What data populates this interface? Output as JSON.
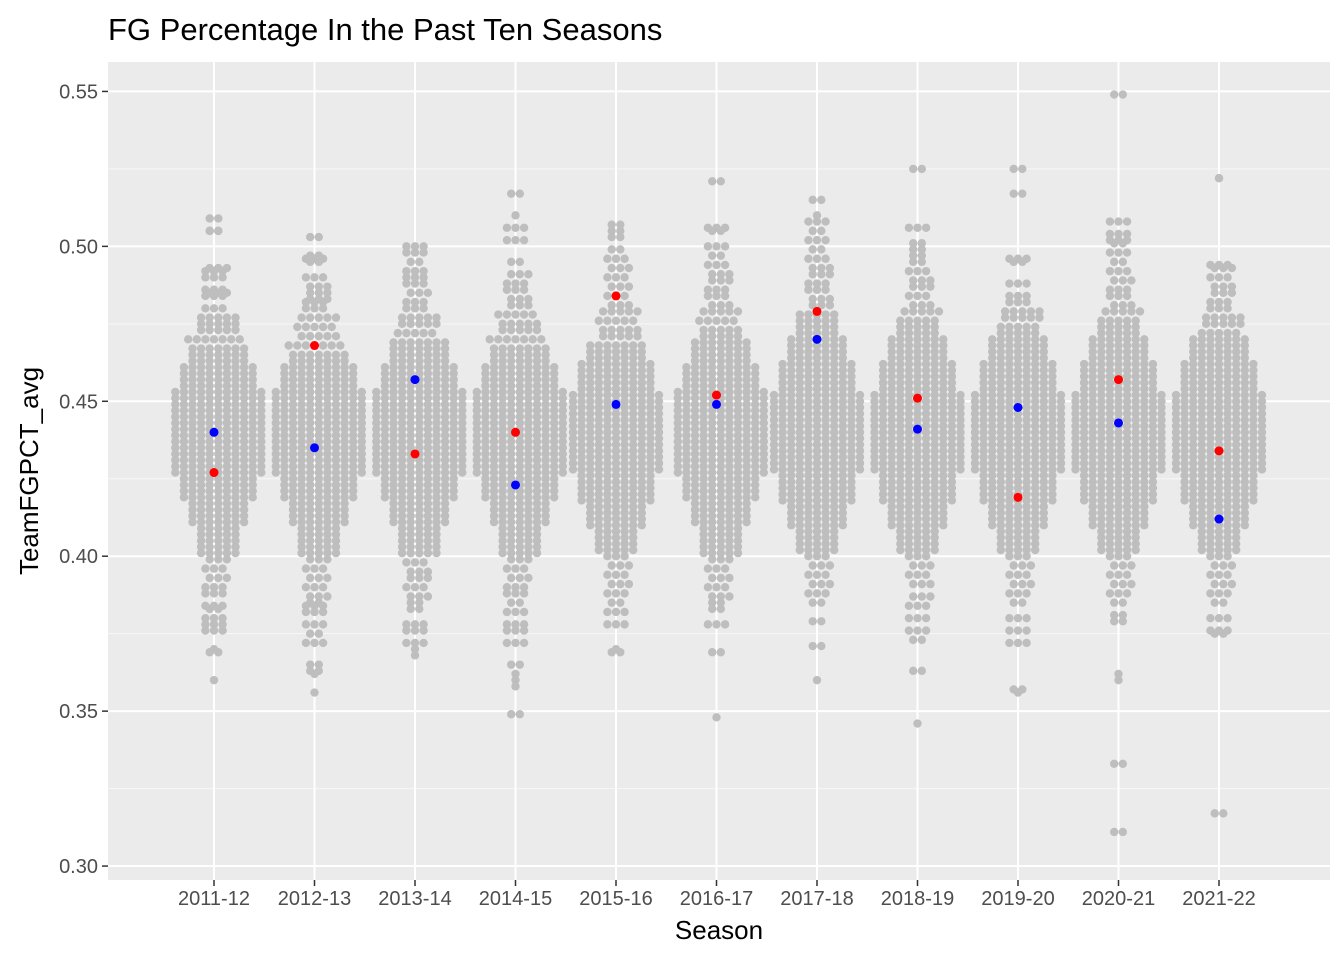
{
  "chart_data": {
    "type": "scatter",
    "title": "FG Percentage In the Past Ten Seasons",
    "xlabel": "Season",
    "ylabel": "TeamFGPCT_avg",
    "categories": [
      "2011-12",
      "2012-13",
      "2013-14",
      "2014-15",
      "2015-16",
      "2016-17",
      "2017-18",
      "2018-19",
      "2019-20",
      "2020-21",
      "2021-22"
    ],
    "ylim": [
      0.2955,
      0.5595
    ],
    "yticks": [
      "0.30",
      "0.35",
      "0.40",
      "0.45",
      "0.50",
      "0.55"
    ],
    "grid": true,
    "legend": "none",
    "background_color": "#ebebeb",
    "distribution_color": "#bebebe",
    "series": [
      {
        "color": "#ff0000",
        "points": [
          {
            "x": "2011-12",
            "y": 0.427
          },
          {
            "x": "2012-13",
            "y": 0.468
          },
          {
            "x": "2013-14",
            "y": 0.433
          },
          {
            "x": "2014-15",
            "y": 0.44
          },
          {
            "x": "2015-16",
            "y": 0.484
          },
          {
            "x": "2016-17",
            "y": 0.452
          },
          {
            "x": "2017-18",
            "y": 0.479
          },
          {
            "x": "2018-19",
            "y": 0.451
          },
          {
            "x": "2019-20",
            "y": 0.419
          },
          {
            "x": "2020-21",
            "y": 0.457
          },
          {
            "x": "2021-22",
            "y": 0.434
          }
        ]
      },
      {
        "color": "#0000ff",
        "points": [
          {
            "x": "2011-12",
            "y": 0.44
          },
          {
            "x": "2012-13",
            "y": 0.435
          },
          {
            "x": "2013-14",
            "y": 0.457
          },
          {
            "x": "2014-15",
            "y": 0.423
          },
          {
            "x": "2015-16",
            "y": 0.449
          },
          {
            "x": "2016-17",
            "y": 0.449
          },
          {
            "x": "2017-18",
            "y": 0.47
          },
          {
            "x": "2018-19",
            "y": 0.441
          },
          {
            "x": "2019-20",
            "y": 0.448
          },
          {
            "x": "2020-21",
            "y": 0.443
          },
          {
            "x": "2021-22",
            "y": 0.412
          }
        ]
      }
    ],
    "distribution": [
      {
        "x": "2011-12",
        "values": [
          0.509,
          0.505,
          0.505,
          0.493,
          0.492,
          0.49,
          0.486,
          0.485,
          0.484,
          0.48,
          0.477,
          0.475,
          0.473,
          0.47,
          0.467,
          0.465,
          0.463,
          0.461,
          0.459,
          0.457,
          0.455,
          0.453,
          0.451,
          0.449,
          0.447,
          0.445,
          0.443,
          0.441,
          0.439,
          0.437,
          0.435,
          0.433,
          0.431,
          0.429,
          0.427,
          0.425,
          0.423,
          0.421,
          0.419,
          0.417,
          0.415,
          0.413,
          0.411,
          0.409,
          0.407,
          0.405,
          0.403,
          0.401,
          0.399,
          0.396,
          0.393,
          0.39,
          0.388,
          0.384,
          0.383,
          0.38,
          0.378,
          0.376,
          0.37,
          0.369,
          0.36
        ]
      },
      {
        "x": "2012-13",
        "values": [
          0.503,
          0.497,
          0.496,
          0.495,
          0.49,
          0.487,
          0.485,
          0.483,
          0.482,
          0.48,
          0.477,
          0.474,
          0.471,
          0.468,
          0.465,
          0.463,
          0.461,
          0.459,
          0.457,
          0.455,
          0.453,
          0.451,
          0.449,
          0.447,
          0.445,
          0.443,
          0.441,
          0.439,
          0.437,
          0.435,
          0.433,
          0.431,
          0.429,
          0.427,
          0.425,
          0.423,
          0.421,
          0.419,
          0.417,
          0.415,
          0.413,
          0.411,
          0.409,
          0.407,
          0.405,
          0.403,
          0.401,
          0.399,
          0.396,
          0.393,
          0.39,
          0.387,
          0.385,
          0.384,
          0.382,
          0.378,
          0.375,
          0.372,
          0.365,
          0.363,
          0.362,
          0.356
        ]
      },
      {
        "x": "2013-14",
        "values": [
          0.5,
          0.498,
          0.495,
          0.492,
          0.49,
          0.488,
          0.485,
          0.482,
          0.48,
          0.477,
          0.475,
          0.472,
          0.469,
          0.467,
          0.465,
          0.463,
          0.461,
          0.459,
          0.457,
          0.455,
          0.453,
          0.451,
          0.449,
          0.447,
          0.445,
          0.443,
          0.441,
          0.439,
          0.437,
          0.435,
          0.433,
          0.431,
          0.429,
          0.427,
          0.425,
          0.423,
          0.421,
          0.419,
          0.417,
          0.415,
          0.413,
          0.411,
          0.409,
          0.407,
          0.405,
          0.403,
          0.401,
          0.398,
          0.395,
          0.393,
          0.39,
          0.387,
          0.385,
          0.383,
          0.378,
          0.376,
          0.372,
          0.37,
          0.368
        ]
      },
      {
        "x": "2014-15",
        "values": [
          0.517,
          0.51,
          0.506,
          0.502,
          0.495,
          0.491,
          0.488,
          0.486,
          0.483,
          0.481,
          0.478,
          0.475,
          0.473,
          0.47,
          0.467,
          0.465,
          0.463,
          0.461,
          0.459,
          0.457,
          0.455,
          0.453,
          0.451,
          0.449,
          0.447,
          0.445,
          0.443,
          0.441,
          0.439,
          0.437,
          0.435,
          0.433,
          0.431,
          0.429,
          0.427,
          0.425,
          0.423,
          0.421,
          0.419,
          0.417,
          0.415,
          0.413,
          0.411,
          0.409,
          0.407,
          0.405,
          0.403,
          0.401,
          0.399,
          0.396,
          0.393,
          0.39,
          0.388,
          0.385,
          0.382,
          0.378,
          0.376,
          0.372,
          0.365,
          0.362,
          0.36,
          0.358,
          0.349
        ]
      },
      {
        "x": "2015-16",
        "values": [
          0.507,
          0.505,
          0.503,
          0.499,
          0.496,
          0.493,
          0.49,
          0.487,
          0.484,
          0.481,
          0.479,
          0.476,
          0.473,
          0.471,
          0.468,
          0.466,
          0.464,
          0.462,
          0.46,
          0.458,
          0.456,
          0.454,
          0.452,
          0.45,
          0.448,
          0.446,
          0.444,
          0.442,
          0.44,
          0.438,
          0.436,
          0.434,
          0.432,
          0.43,
          0.428,
          0.426,
          0.424,
          0.422,
          0.42,
          0.418,
          0.416,
          0.414,
          0.412,
          0.41,
          0.408,
          0.406,
          0.404,
          0.402,
          0.4,
          0.397,
          0.394,
          0.391,
          0.388,
          0.385,
          0.382,
          0.378,
          0.37,
          0.369
        ]
      },
      {
        "x": "2016-17",
        "values": [
          0.521,
          0.506,
          0.505,
          0.5,
          0.497,
          0.494,
          0.491,
          0.489,
          0.486,
          0.484,
          0.481,
          0.479,
          0.476,
          0.473,
          0.471,
          0.469,
          0.467,
          0.465,
          0.463,
          0.461,
          0.459,
          0.457,
          0.455,
          0.453,
          0.451,
          0.449,
          0.447,
          0.445,
          0.443,
          0.441,
          0.439,
          0.437,
          0.435,
          0.433,
          0.431,
          0.429,
          0.427,
          0.425,
          0.423,
          0.421,
          0.419,
          0.417,
          0.415,
          0.413,
          0.411,
          0.409,
          0.407,
          0.405,
          0.403,
          0.401,
          0.399,
          0.396,
          0.393,
          0.39,
          0.387,
          0.385,
          0.383,
          0.378,
          0.369,
          0.348
        ]
      },
      {
        "x": "2017-18",
        "values": [
          0.515,
          0.51,
          0.508,
          0.505,
          0.502,
          0.499,
          0.496,
          0.493,
          0.491,
          0.488,
          0.486,
          0.483,
          0.481,
          0.478,
          0.476,
          0.474,
          0.472,
          0.47,
          0.468,
          0.466,
          0.464,
          0.462,
          0.46,
          0.458,
          0.456,
          0.454,
          0.452,
          0.45,
          0.448,
          0.446,
          0.444,
          0.442,
          0.44,
          0.438,
          0.436,
          0.434,
          0.432,
          0.43,
          0.428,
          0.426,
          0.424,
          0.422,
          0.42,
          0.418,
          0.416,
          0.414,
          0.412,
          0.41,
          0.408,
          0.406,
          0.404,
          0.402,
          0.4,
          0.397,
          0.394,
          0.391,
          0.388,
          0.385,
          0.379,
          0.371,
          0.36
        ]
      },
      {
        "x": "2018-19",
        "values": [
          0.525,
          0.506,
          0.501,
          0.499,
          0.497,
          0.495,
          0.492,
          0.489,
          0.487,
          0.484,
          0.481,
          0.479,
          0.476,
          0.474,
          0.472,
          0.47,
          0.468,
          0.466,
          0.464,
          0.462,
          0.46,
          0.458,
          0.456,
          0.454,
          0.452,
          0.45,
          0.448,
          0.446,
          0.444,
          0.442,
          0.44,
          0.438,
          0.436,
          0.434,
          0.432,
          0.43,
          0.428,
          0.426,
          0.424,
          0.422,
          0.42,
          0.418,
          0.416,
          0.414,
          0.412,
          0.41,
          0.408,
          0.406,
          0.404,
          0.402,
          0.4,
          0.397,
          0.394,
          0.391,
          0.387,
          0.384,
          0.38,
          0.376,
          0.373,
          0.363,
          0.346
        ]
      },
      {
        "x": "2019-20",
        "values": [
          0.525,
          0.517,
          0.496,
          0.495,
          0.488,
          0.484,
          0.482,
          0.479,
          0.477,
          0.474,
          0.472,
          0.47,
          0.468,
          0.466,
          0.464,
          0.462,
          0.46,
          0.458,
          0.456,
          0.454,
          0.452,
          0.45,
          0.448,
          0.446,
          0.444,
          0.442,
          0.44,
          0.438,
          0.436,
          0.434,
          0.432,
          0.43,
          0.428,
          0.426,
          0.424,
          0.422,
          0.42,
          0.418,
          0.416,
          0.414,
          0.412,
          0.41,
          0.408,
          0.406,
          0.404,
          0.402,
          0.4,
          0.397,
          0.394,
          0.391,
          0.388,
          0.385,
          0.38,
          0.376,
          0.372,
          0.357,
          0.356
        ]
      },
      {
        "x": "2020-21",
        "values": [
          0.549,
          0.508,
          0.504,
          0.502,
          0.501,
          0.498,
          0.495,
          0.492,
          0.489,
          0.486,
          0.484,
          0.481,
          0.479,
          0.476,
          0.474,
          0.472,
          0.47,
          0.468,
          0.466,
          0.464,
          0.462,
          0.46,
          0.458,
          0.456,
          0.454,
          0.452,
          0.45,
          0.448,
          0.446,
          0.444,
          0.442,
          0.44,
          0.438,
          0.436,
          0.434,
          0.432,
          0.43,
          0.428,
          0.426,
          0.424,
          0.422,
          0.42,
          0.418,
          0.416,
          0.414,
          0.412,
          0.41,
          0.408,
          0.406,
          0.404,
          0.402,
          0.4,
          0.397,
          0.394,
          0.391,
          0.388,
          0.385,
          0.381,
          0.379,
          0.362,
          0.36,
          0.333,
          0.311
        ]
      },
      {
        "x": "2021-22",
        "values": [
          0.522,
          0.522,
          0.494,
          0.493,
          0.49,
          0.487,
          0.485,
          0.482,
          0.48,
          0.477,
          0.475,
          0.472,
          0.47,
          0.468,
          0.466,
          0.464,
          0.462,
          0.46,
          0.458,
          0.456,
          0.454,
          0.452,
          0.45,
          0.448,
          0.446,
          0.444,
          0.442,
          0.44,
          0.438,
          0.436,
          0.434,
          0.432,
          0.43,
          0.428,
          0.426,
          0.424,
          0.422,
          0.42,
          0.418,
          0.416,
          0.414,
          0.412,
          0.41,
          0.408,
          0.406,
          0.404,
          0.402,
          0.4,
          0.397,
          0.394,
          0.391,
          0.388,
          0.385,
          0.38,
          0.376,
          0.375,
          0.317
        ]
      }
    ]
  }
}
